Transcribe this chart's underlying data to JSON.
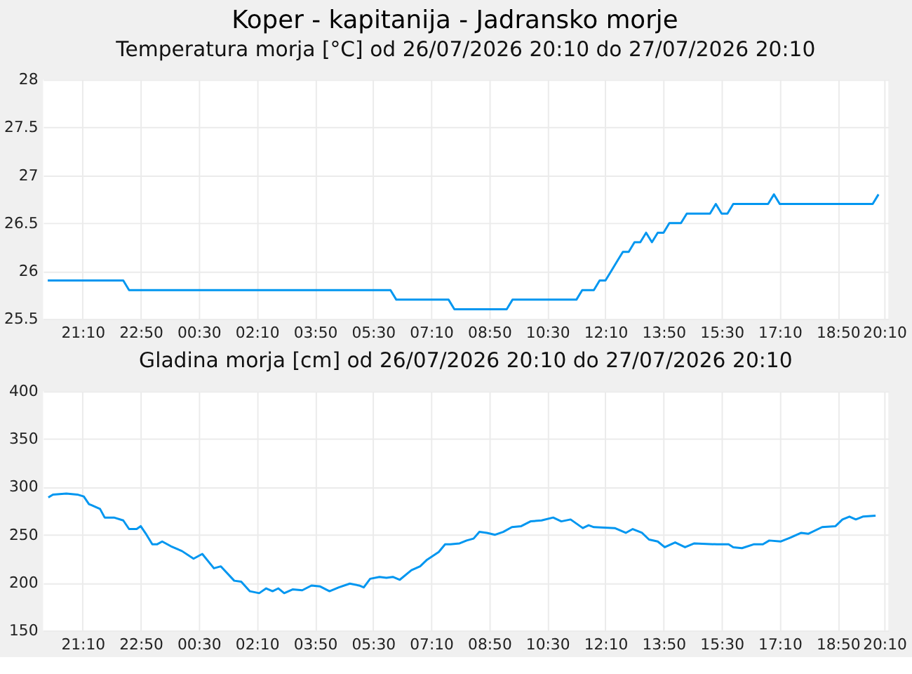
{
  "chart_data": [
    {
      "type": "line",
      "title": "Koper - kapitanija - Jadransko morje",
      "subtitle": "Temperatura morja [°C] od 26/07/2026 20:10 do 27/07/2026 20:10",
      "x": [
        "2026-07-26T20:10",
        "2026-07-26T22:20",
        "2026-07-26T22:30",
        "2026-07-27T06:00",
        "2026-07-27T06:10",
        "2026-07-27T07:40",
        "2026-07-27T07:50",
        "2026-07-27T09:20",
        "2026-07-27T09:30",
        "2026-07-27T11:20",
        "2026-07-27T11:30",
        "2026-07-27T11:50",
        "2026-07-27T12:00",
        "2026-07-27T12:10",
        "2026-07-27T12:20",
        "2026-07-27T12:30",
        "2026-07-27T12:40",
        "2026-07-27T12:50",
        "2026-07-27T13:00",
        "2026-07-27T13:10",
        "2026-07-27T13:20",
        "2026-07-27T13:30",
        "2026-07-27T13:40",
        "2026-07-27T13:50",
        "2026-07-27T14:00",
        "2026-07-27T14:20",
        "2026-07-27T14:30",
        "2026-07-27T15:10",
        "2026-07-27T15:20",
        "2026-07-27T15:30",
        "2026-07-27T15:40",
        "2026-07-27T15:50",
        "2026-07-27T16:50",
        "2026-07-27T17:00",
        "2026-07-27T17:10",
        "2026-07-27T19:50",
        "2026-07-27T20:00"
      ],
      "series": [
        {
          "color": "#0096f0",
          "values": [
            25.9,
            25.9,
            25.8,
            25.8,
            25.7,
            25.7,
            25.6,
            25.6,
            25.7,
            25.7,
            25.8,
            25.8,
            25.9,
            25.9,
            26.0,
            26.1,
            26.2,
            26.2,
            26.3,
            26.3,
            26.4,
            26.3,
            26.4,
            26.4,
            26.5,
            26.5,
            26.6,
            26.6,
            26.7,
            26.6,
            26.6,
            26.7,
            26.7,
            26.8,
            26.7,
            26.7,
            26.8
          ]
        }
      ],
      "xlim": [
        "2026-07-26T20:02",
        "2026-07-27T20:17"
      ],
      "ylim": [
        25.5,
        28
      ],
      "yticks": [
        25.5,
        26,
        26.5,
        27,
        27.5,
        28
      ],
      "xticks": [
        {
          "value": "2026-07-26T21:10",
          "label": "21:10"
        },
        {
          "value": "2026-07-26T22:50",
          "label": "22:50"
        },
        {
          "value": "2026-07-27T00:30",
          "label": "00:30"
        },
        {
          "value": "2026-07-27T02:10",
          "label": "02:10"
        },
        {
          "value": "2026-07-27T03:50",
          "label": "03:50"
        },
        {
          "value": "2026-07-27T05:30",
          "label": "05:30"
        },
        {
          "value": "2026-07-27T07:10",
          "label": "07:10"
        },
        {
          "value": "2026-07-27T08:50",
          "label": "08:50"
        },
        {
          "value": "2026-07-27T10:30",
          "label": "10:30"
        },
        {
          "value": "2026-07-27T12:10",
          "label": "12:10"
        },
        {
          "value": "2026-07-27T13:50",
          "label": "13:50"
        },
        {
          "value": "2026-07-27T15:30",
          "label": "15:30"
        },
        {
          "value": "2026-07-27T17:10",
          "label": "17:10"
        },
        {
          "value": "2026-07-27T18:50",
          "label": "18:50"
        },
        {
          "value": "2026-07-27T20:10",
          "label": "20:10"
        }
      ],
      "grid": true,
      "marker": "none",
      "line_style": "solid"
    },
    {
      "type": "line",
      "title": "Gladina morja [cm] od 26/07/2026 20:10 do 27/07/2026 20:10",
      "x": [
        "2026-07-26T20:11",
        "2026-07-26T20:19",
        "2026-07-26T20:42",
        "2026-07-26T21:01",
        "2026-07-26T21:12",
        "2026-07-26T21:21",
        "2026-07-26T21:25",
        "2026-07-26T21:40",
        "2026-07-26T21:48",
        "2026-07-26T22:04",
        "2026-07-26T22:20",
        "2026-07-26T22:30",
        "2026-07-26T22:43",
        "2026-07-26T22:50",
        "2026-07-26T22:59",
        "2026-07-26T23:10",
        "2026-07-26T23:18",
        "2026-07-26T23:27",
        "2026-07-26T23:42",
        "2026-07-27T00:01",
        "2026-07-27T00:21",
        "2026-07-27T00:36",
        "2026-07-27T00:56",
        "2026-07-27T01:08",
        "2026-07-27T01:31",
        "2026-07-27T01:43",
        "2026-07-27T01:58",
        "2026-07-27T02:14",
        "2026-07-27T02:26",
        "2026-07-27T02:37",
        "2026-07-27T02:47",
        "2026-07-27T02:57",
        "2026-07-27T03:12",
        "2026-07-27T03:28",
        "2026-07-27T03:44",
        "2026-07-27T03:59",
        "2026-07-27T04:15",
        "2026-07-27T04:31",
        "2026-07-27T04:50",
        "2026-07-27T05:06",
        "2026-07-27T05:14",
        "2026-07-27T05:25",
        "2026-07-27T05:41",
        "2026-07-27T05:53",
        "2026-07-27T06:04",
        "2026-07-27T06:16",
        "2026-07-27T06:36",
        "2026-07-27T06:51",
        "2026-07-27T07:03",
        "2026-07-27T07:23",
        "2026-07-27T07:34",
        "2026-07-27T07:43",
        "2026-07-27T07:59",
        "2026-07-27T08:11",
        "2026-07-27T08:23",
        "2026-07-27T08:33",
        "2026-07-27T08:46",
        "2026-07-27T09:00",
        "2026-07-27T09:14",
        "2026-07-27T09:29",
        "2026-07-27T09:45",
        "2026-07-27T10:01",
        "2026-07-27T10:20",
        "2026-07-27T10:40",
        "2026-07-27T10:54",
        "2026-07-27T11:10",
        "2026-07-27T11:31",
        "2026-07-27T11:41",
        "2026-07-27T11:50",
        "2026-07-27T12:26",
        "2026-07-27T12:45",
        "2026-07-27T12:57",
        "2026-07-27T13:13",
        "2026-07-27T13:25",
        "2026-07-27T13:40",
        "2026-07-27T13:52",
        "2026-07-27T14:10",
        "2026-07-27T14:27",
        "2026-07-27T14:43",
        "2026-07-27T15:22",
        "2026-07-27T15:42",
        "2026-07-27T15:50",
        "2026-07-27T16:05",
        "2026-07-27T16:25",
        "2026-07-27T16:41",
        "2026-07-27T16:52",
        "2026-07-27T17:12",
        "2026-07-27T17:28",
        "2026-07-27T17:47",
        "2026-07-27T17:59",
        "2026-07-27T18:23",
        "2026-07-27T18:46",
        "2026-07-27T18:58",
        "2026-07-27T19:10",
        "2026-07-27T19:21",
        "2026-07-27T19:33",
        "2026-07-27T19:55"
      ],
      "series": [
        {
          "color": "#0096f0",
          "values": [
            289,
            292,
            293,
            292,
            290,
            282,
            281,
            277,
            268,
            268,
            265,
            256,
            256,
            259,
            251,
            240,
            240,
            243,
            238,
            233,
            225,
            230,
            215,
            217,
            202,
            201,
            191,
            189,
            194,
            191,
            194,
            189,
            193,
            192,
            197,
            196,
            191,
            195,
            199,
            197,
            195,
            204,
            206,
            205,
            206,
            203,
            213,
            217,
            224,
            232,
            240,
            240,
            241,
            244,
            246,
            253,
            252,
            250,
            253,
            258,
            259,
            264,
            265,
            268,
            264,
            266,
            257,
            260,
            258,
            257,
            252,
            256,
            252,
            245,
            243,
            237,
            242,
            237,
            241,
            240,
            240,
            237,
            236,
            240,
            240,
            244,
            243,
            247,
            252,
            251,
            258,
            259,
            266,
            269,
            266,
            269,
            270
          ]
        }
      ],
      "xlim": [
        "2026-07-26T20:02",
        "2026-07-27T20:17"
      ],
      "ylim": [
        150,
        400
      ],
      "yticks": [
        150,
        200,
        250,
        300,
        350,
        400
      ],
      "xticks": [
        {
          "value": "2026-07-26T21:10",
          "label": "21:10"
        },
        {
          "value": "2026-07-26T22:50",
          "label": "22:50"
        },
        {
          "value": "2026-07-27T00:30",
          "label": "00:30"
        },
        {
          "value": "2026-07-27T02:10",
          "label": "02:10"
        },
        {
          "value": "2026-07-27T03:50",
          "label": "03:50"
        },
        {
          "value": "2026-07-27T05:30",
          "label": "05:30"
        },
        {
          "value": "2026-07-27T07:10",
          "label": "07:10"
        },
        {
          "value": "2026-07-27T08:50",
          "label": "08:50"
        },
        {
          "value": "2026-07-27T10:30",
          "label": "10:30"
        },
        {
          "value": "2026-07-27T12:10",
          "label": "12:10"
        },
        {
          "value": "2026-07-27T13:50",
          "label": "13:50"
        },
        {
          "value": "2026-07-27T15:30",
          "label": "15:30"
        },
        {
          "value": "2026-07-27T17:10",
          "label": "17:10"
        },
        {
          "value": "2026-07-27T18:50",
          "label": "18:50"
        },
        {
          "value": "2026-07-27T20:10",
          "label": "20:10"
        }
      ],
      "grid": true,
      "marker": "none",
      "line_style": "solid"
    }
  ]
}
